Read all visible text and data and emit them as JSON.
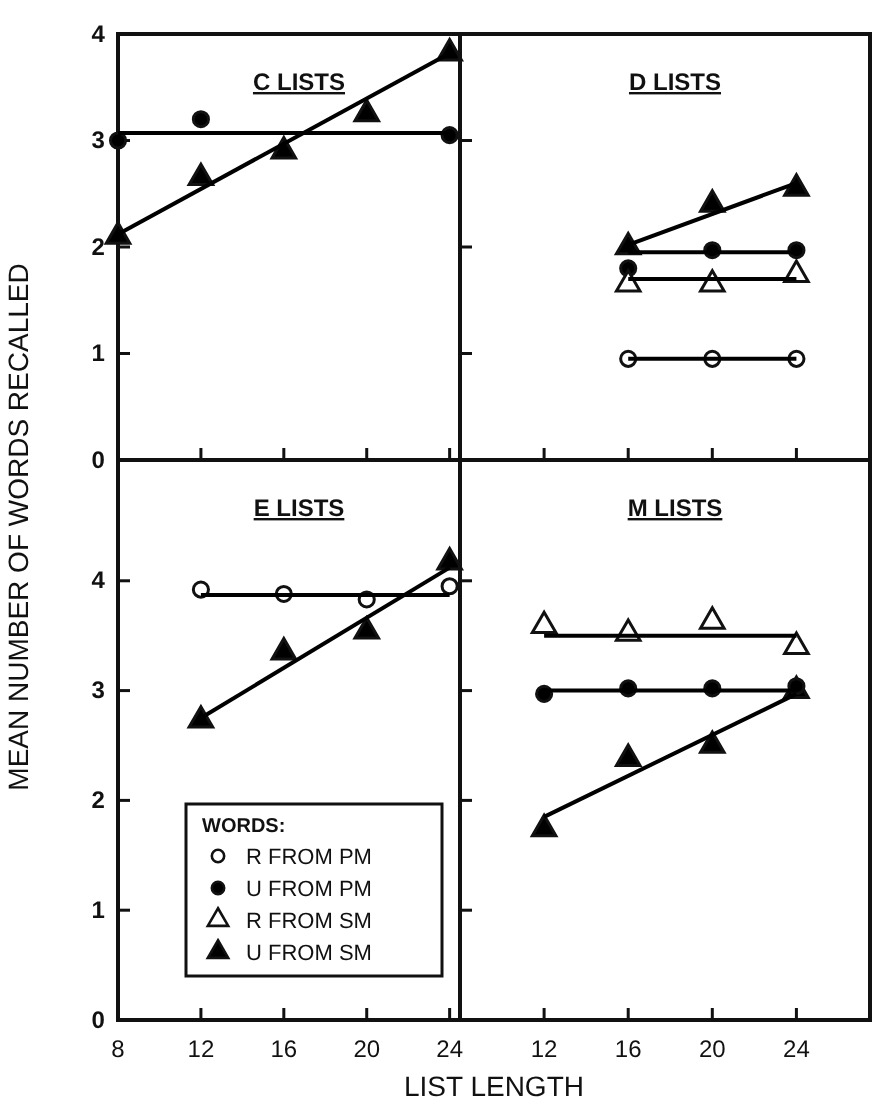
{
  "chart_data": [
    {
      "type": "scatter",
      "title": "C LISTS",
      "ylabel": "MEAN NUMBER OF WORDS RECALLED",
      "xlim": [
        8,
        24.5
      ],
      "ylim": [
        0,
        4
      ],
      "xticks": [
        {
          "value": 8,
          "label": null
        },
        {
          "value": 12,
          "label": null
        },
        {
          "value": 16,
          "label": null
        },
        {
          "value": 20,
          "label": null
        },
        {
          "value": 24,
          "label": null
        }
      ],
      "yticks": [
        0,
        1,
        2,
        3,
        4
      ],
      "tick_labels": "y",
      "grid": false,
      "series": [
        {
          "type": "scatter",
          "marker": "circle",
          "color": "#000000",
          "x": [
            8,
            12,
            16,
            20,
            24
          ],
          "values": [
            3.0,
            3.2,
            null,
            null,
            3.05
          ]
        },
        {
          "type": "scatter",
          "marker": "triangle",
          "color": "#000000",
          "x": [
            8,
            12,
            16,
            20,
            24
          ],
          "values": [
            2.1,
            2.65,
            2.9,
            3.25,
            3.82
          ]
        },
        {
          "type": "line",
          "color": "#000000",
          "x": [
            8,
            24
          ],
          "values": [
            3.07,
            3.07
          ]
        },
        {
          "type": "line",
          "color": "#000000",
          "x": [
            8,
            24
          ],
          "values": [
            2.12,
            3.82
          ]
        }
      ]
    },
    {
      "type": "scatter",
      "title": "D LISTS",
      "xlim": [
        8,
        27.5
      ],
      "ylim": [
        0,
        4
      ],
      "xticks": [
        {
          "value": 12,
          "label": null
        },
        {
          "value": 16,
          "label": null
        },
        {
          "value": 20,
          "label": null
        },
        {
          "value": 24,
          "label": null
        }
      ],
      "yticks": [
        {
          "value": 1,
          "label": null
        },
        {
          "value": 2,
          "label": null
        },
        {
          "value": 3,
          "label": null
        }
      ],
      "tick_labels": false,
      "grid": false,
      "series": [
        {
          "type": "scatter",
          "marker": "circle",
          "color": "#ffffff",
          "x": [
            16,
            20,
            24
          ],
          "values": [
            0.95,
            0.95,
            0.95
          ]
        },
        {
          "type": "scatter",
          "marker": "circle",
          "color": "#000000",
          "x": [
            16,
            20,
            24
          ],
          "values": [
            1.8,
            1.97,
            1.97
          ]
        },
        {
          "type": "scatter",
          "marker": "triangle",
          "color": "#ffffff",
          "x": [
            16,
            20,
            24
          ],
          "values": [
            1.65,
            1.65,
            1.74
          ]
        },
        {
          "type": "scatter",
          "marker": "triangle",
          "color": "#000000",
          "x": [
            16,
            20,
            24
          ],
          "values": [
            2.0,
            2.4,
            2.55
          ]
        },
        {
          "type": "line",
          "color": "#000000",
          "x": [
            16,
            24
          ],
          "values": [
            0.95,
            0.95
          ]
        },
        {
          "type": "line",
          "color": "#000000",
          "x": [
            16,
            24
          ],
          "values": [
            1.95,
            1.95
          ]
        },
        {
          "type": "line",
          "color": "#000000",
          "x": [
            16,
            24
          ],
          "values": [
            1.7,
            1.7
          ]
        },
        {
          "type": "line",
          "color": "#000000",
          "x": [
            16,
            24
          ],
          "values": [
            2.02,
            2.6
          ]
        }
      ]
    },
    {
      "type": "scatter",
      "title": "E LISTS",
      "xlabel": "LIST LENGTH",
      "legend_title": "WORDS:",
      "legend": "bottom left",
      "xlim": [
        8,
        24.5
      ],
      "ylim": [
        0,
        5.1
      ],
      "xticks": [
        8,
        12,
        16,
        20,
        24
      ],
      "yticks": [
        0,
        1,
        2,
        3,
        4
      ],
      "grid": false,
      "series": [
        {
          "type": "scatter",
          "name": "R FROM PM",
          "marker": "circle",
          "color": "#ffffff",
          "x": [
            12,
            16,
            20,
            24
          ],
          "values": [
            3.92,
            3.88,
            3.83,
            3.95
          ]
        },
        {
          "type": "scatter",
          "name": "U FROM PM",
          "marker": "circle",
          "color": "#000000"
        },
        {
          "type": "scatter",
          "name": "R FROM SM",
          "marker": "triangle",
          "color": "#ffffff"
        },
        {
          "type": "scatter",
          "name": "U FROM SM",
          "marker": "triangle",
          "color": "#000000",
          "x": [
            12,
            16,
            20,
            24
          ],
          "values": [
            2.73,
            3.35,
            3.54,
            4.17
          ]
        },
        {
          "type": "line",
          "color": "#000000",
          "x": [
            12,
            24
          ],
          "values": [
            3.87,
            3.87
          ]
        },
        {
          "type": "line",
          "color": "#000000",
          "x": [
            12,
            24
          ],
          "values": [
            2.75,
            4.12
          ]
        }
      ]
    },
    {
      "type": "scatter",
      "title": "M LISTS",
      "xlim": [
        8,
        27.5
      ],
      "ylim": [
        0,
        5.1
      ],
      "xticks": [
        12,
        16,
        20,
        24
      ],
      "yticks": [
        {
          "value": 1,
          "label": null
        },
        {
          "value": 2,
          "label": null
        },
        {
          "value": 3,
          "label": null
        },
        {
          "value": 4,
          "label": null
        }
      ],
      "tick_labels": "x",
      "grid": false,
      "series": [
        {
          "type": "scatter",
          "marker": "triangle",
          "color": "#ffffff",
          "x": [
            12,
            16,
            20,
            24
          ],
          "values": [
            3.59,
            3.52,
            3.63,
            3.4
          ]
        },
        {
          "type": "scatter",
          "marker": "triangle",
          "color": "#000000",
          "x": [
            12,
            16,
            20,
            24
          ],
          "values": [
            1.74,
            2.38,
            2.5,
            3.0
          ]
        },
        {
          "type": "scatter",
          "marker": "circle",
          "color": "#000000",
          "x": [
            12,
            16,
            20,
            24
          ],
          "values": [
            2.97,
            3.02,
            3.02,
            3.04
          ]
        },
        {
          "type": "line",
          "color": "#000000",
          "x": [
            12,
            24
          ],
          "values": [
            3.5,
            3.5
          ]
        },
        {
          "type": "line",
          "color": "#000000",
          "x": [
            12,
            24
          ],
          "values": [
            3.0,
            3.0
          ]
        },
        {
          "type": "line",
          "color": "#000000",
          "x": [
            12,
            24
          ],
          "values": [
            1.85,
            2.97
          ]
        }
      ]
    }
  ]
}
